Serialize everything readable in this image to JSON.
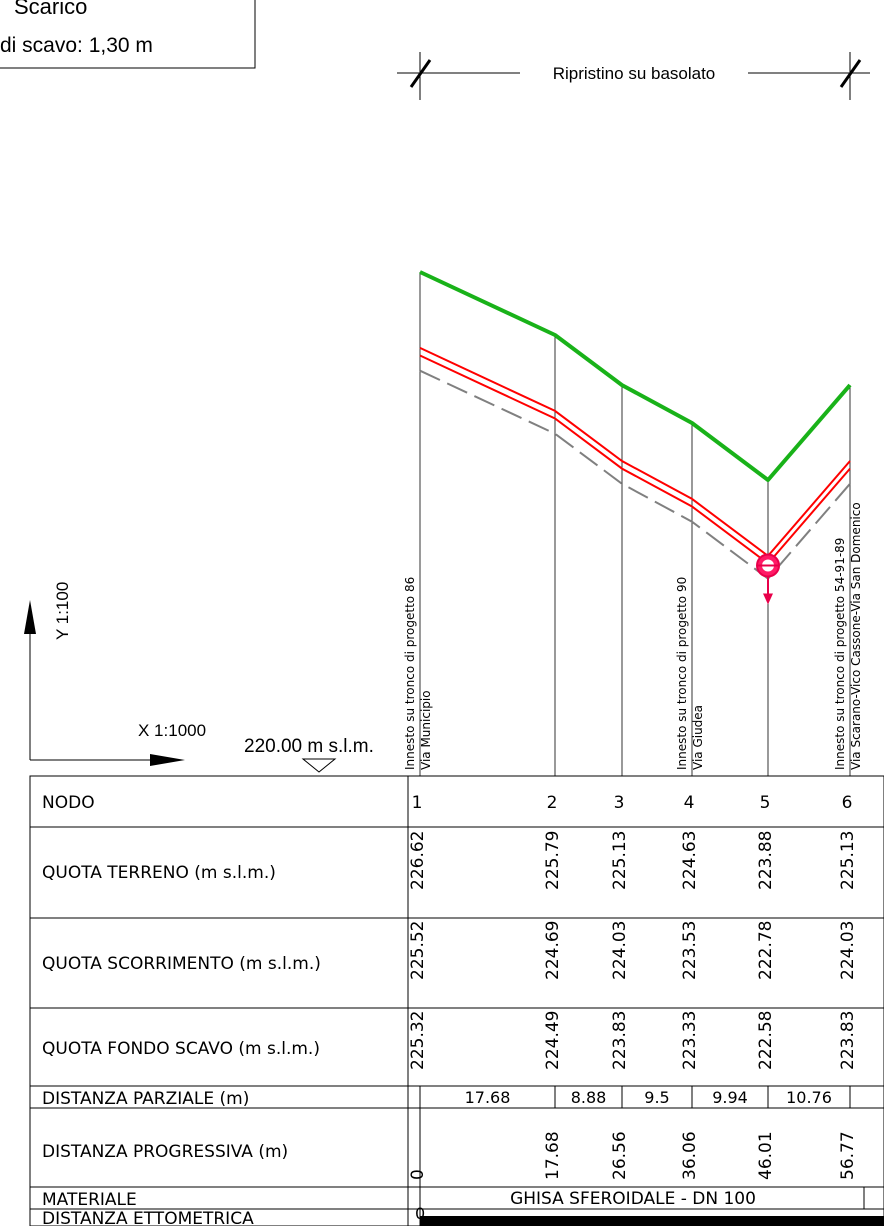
{
  "legend_box": {
    "line1": "Scarico",
    "line2": "di scavo: 1,30 m"
  },
  "ripristino_label": "Ripristino su basolato",
  "axes": {
    "y_scale": "Y 1:100",
    "x_scale": "X 1:1000",
    "datum": "220.00 m s.l.m."
  },
  "annotations": [
    {
      "node": 1,
      "line1": "Innesto su tronco di progetto 86",
      "line2": "Via Municipio"
    },
    {
      "node": 4,
      "line1": "Innesto su tronco di progetto 90",
      "line2": "Via Giudea"
    },
    {
      "node": 6,
      "line1": "Innesto su tronco di progetto 54-91-89",
      "line2": "Via Scarano-Vico Cassone-Via San Domenico"
    }
  ],
  "table": {
    "rows": {
      "nodo": "NODO",
      "terreno": "QUOTA TERRENO (m s.l.m.)",
      "scorrimento": "QUOTA SCORRIMENTO (m s.l.m.)",
      "fondo": "QUOTA FONDO SCAVO (m s.l.m.)",
      "parziale": "DISTANZA PARZIALE (m)",
      "progressiva": "DISTANZA PROGRESSIVA (m)",
      "materiale": "MATERIALE",
      "ettometrica": "DISTANZA ETTOMETRICA"
    },
    "material": "GHISA SFEROIDALE - DN 100",
    "ettometrica_start": "0"
  },
  "chart_data": {
    "type": "line",
    "xlabel": "",
    "ylabel": "",
    "x": [
      0,
      17.68,
      26.56,
      36.06,
      46.01,
      56.77
    ],
    "nodes": [
      "1",
      "2",
      "3",
      "4",
      "5",
      "6"
    ],
    "series": [
      {
        "name": "QUOTA TERRENO (m s.l.m.)",
        "values": [
          226.62,
          225.79,
          225.13,
          224.63,
          223.88,
          225.13
        ],
        "color": "#19b219"
      },
      {
        "name": "QUOTA SCORRIMENTO (m s.l.m.)",
        "values": [
          225.52,
          224.69,
          224.03,
          223.53,
          222.78,
          224.03
        ],
        "color": "#ff0000"
      },
      {
        "name": "QUOTA FONDO SCAVO (m s.l.m.)",
        "values": [
          225.32,
          224.49,
          223.83,
          223.33,
          222.58,
          223.83
        ],
        "color": "#808080"
      }
    ],
    "labels": {
      "terreno": [
        "226.62",
        "225.79",
        "225.13",
        "224.63",
        "223.88",
        "225.13"
      ],
      "scorrimento": [
        "225.52",
        "224.69",
        "224.03",
        "223.53",
        "222.78",
        "224.03"
      ],
      "fondo": [
        "225.32",
        "224.49",
        "223.83",
        "223.33",
        "222.58",
        "223.83"
      ],
      "parziale": [
        "17.68",
        "8.88",
        "9.5",
        "9.94",
        "10.76"
      ],
      "progressiva": [
        "0",
        "17.68",
        "26.56",
        "36.06",
        "46.01",
        "56.77"
      ]
    },
    "discharge_node": "5",
    "ylim": [
      220.0,
      227.0
    ]
  }
}
